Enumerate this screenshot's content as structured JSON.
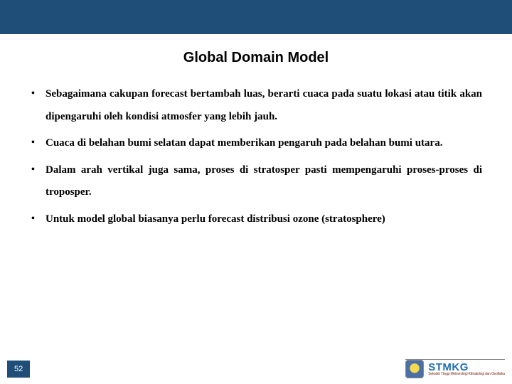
{
  "colors": {
    "header_bar": "#1f4e79",
    "background": "#ffffff",
    "text": "#000000",
    "page_num_bg": "#1f4e79",
    "page_num_text": "#ffffff",
    "logo_text": "#1f6fb0",
    "logo_sub": "#7a2e1a"
  },
  "title": {
    "text": "Global Domain Model",
    "fontsize": 20,
    "font_family": "Arial"
  },
  "bullets": {
    "fontsize": 15,
    "font_family": "Georgia",
    "line_height": 2.1,
    "items": [
      "Sebagaimana cakupan forecast bertambah luas, berarti cuaca pada suatu lokasi atau titik akan dipengaruhi oleh kondisi atmosfer yang lebih jauh.",
      "Cuaca di belahan bumi selatan  dapat memberikan pengaruh pada belahan bumi utara.",
      "Dalam arah vertikal juga sama, proses di stratosper pasti mempengaruhi proses-proses di troposper.",
      "Untuk model global biasanya perlu forecast distribusi ozone (stratosphere)"
    ]
  },
  "footer": {
    "page_number": "52",
    "logo_text": "STMKG",
    "logo_sub": "Sekolah Tinggi Meteorologi Klimatologi dan Geofisika"
  }
}
